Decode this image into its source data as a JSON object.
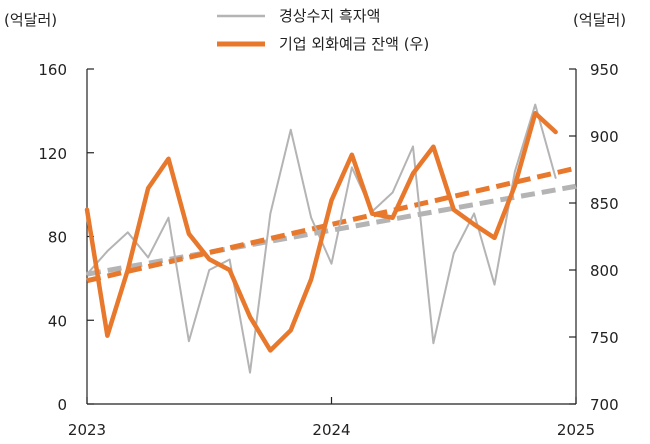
{
  "chart_data": {
    "type": "line",
    "y_left_unit": "(억달러)",
    "y_right_unit": "(억달러)",
    "y_left_ticks": [
      0,
      40,
      80,
      120,
      160
    ],
    "y_right_ticks": [
      700,
      750,
      800,
      850,
      900,
      950
    ],
    "y_left_range": [
      0,
      160
    ],
    "y_right_range": [
      700,
      950
    ],
    "x_ticks": [
      "2023",
      "2024",
      "2025"
    ],
    "x_range": [
      2023,
      2025
    ],
    "legend": {
      "position": "top-center"
    },
    "series": [
      {
        "name": "경상수지 흑자액",
        "axis": "left",
        "color": "#b4b4b4",
        "x": [
          2023.0,
          2023.0833,
          2023.1667,
          2023.25,
          2023.3333,
          2023.4167,
          2023.5,
          2023.5833,
          2023.6667,
          2023.75,
          2023.8333,
          2023.9167,
          2024.0,
          2024.0833,
          2024.1667,
          2024.25,
          2024.3333,
          2024.4167,
          2024.5,
          2024.5833,
          2024.6667,
          2024.75,
          2024.8333,
          2024.9167,
          2025.0
        ],
        "y": [
          62,
          73,
          82,
          70,
          89,
          30,
          64,
          69,
          15,
          91,
          131,
          89,
          67,
          113,
          92,
          101,
          123,
          29,
          72,
          91,
          57,
          111,
          143,
          108,
          null
        ]
      },
      {
        "name": "기업 외화예금 잔액 (우)",
        "axis": "right",
        "color": "#e8782c",
        "x": [
          2023.0,
          2023.0833,
          2023.1667,
          2023.25,
          2023.3333,
          2023.4167,
          2023.5,
          2023.5833,
          2023.6667,
          2023.75,
          2023.8333,
          2023.9167,
          2024.0,
          2024.0833,
          2024.1667,
          2024.25,
          2024.3333,
          2024.4167,
          2024.5,
          2024.5833,
          2024.6667,
          2024.75,
          2024.8333,
          2024.9167,
          2025.0
        ],
        "y": [
          845,
          751,
          800,
          861,
          883,
          827,
          808,
          800,
          765,
          740,
          755,
          793,
          852,
          886,
          842,
          839,
          872,
          892,
          845,
          834,
          824,
          863,
          917,
          903,
          null
        ]
      }
    ],
    "trendlines": [
      {
        "of": "경상수지 흑자액",
        "axis": "left",
        "color": "#b4b4b4",
        "dash": true,
        "x": [
          2023.0,
          2025.0
        ],
        "y": [
          62,
          104
        ]
      },
      {
        "of": "기업 외화예금 잔액 (우)",
        "axis": "right",
        "color": "#e8782c",
        "dash": true,
        "x": [
          2023.0,
          2025.0
        ],
        "y": [
          792,
          876
        ]
      }
    ]
  }
}
